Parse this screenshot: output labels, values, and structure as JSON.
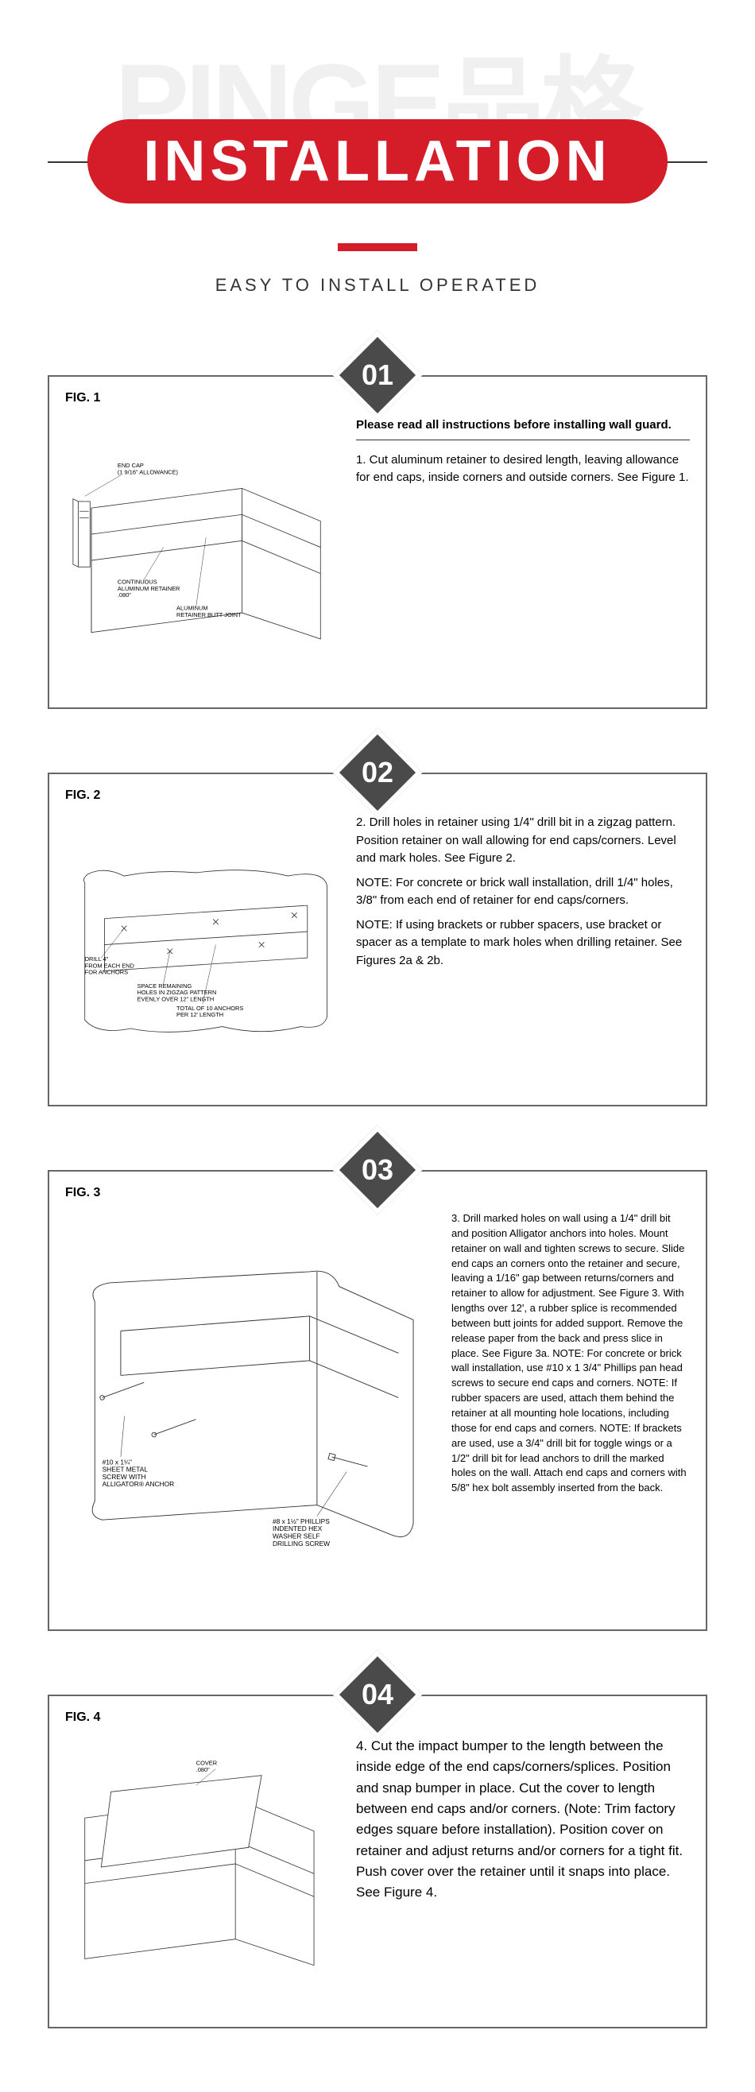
{
  "brand": {
    "watermark_en": "PINGE",
    "watermark_cn": "品格"
  },
  "title": "INSTALLATION",
  "subtitle": "EASY TO INSTALL  OPERATED",
  "colors": {
    "accent": "#d51c29",
    "badge": "#4a4a4a",
    "border": "#666666",
    "watermark": "#f0f0f0"
  },
  "steps": [
    {
      "num": "01",
      "fig": "FIG. 1",
      "header": "Please read all instructions before installing wall guard.",
      "body": "1. Cut aluminum retainer to desired length, leaving allowance for end caps, inside corners and outside corners. See Figure 1.",
      "callouts": {
        "end_cap": "END CAP\n(1 9/16\" ALLOWANCE)",
        "retainer": "CONTINUOUS\nALUMINUM RETAINER\n.080\"",
        "butt": "ALUMINUM\nRETAINER BUTT JOINT"
      }
    },
    {
      "num": "02",
      "fig": "FIG. 2",
      "body": "2. Drill holes in retainer using 1/4\" drill bit in a zigzag pattern. Position retainer on wall allowing for end caps/corners. Level and mark holes. See Figure 2.\n\nNOTE: For concrete or brick wall installation, drill 1/4\" holes, 3/8\" from each end of retainer for end caps/corners.\n\nNOTE: If using brackets or rubber spacers, use bracket or spacer as a template to mark holes when drilling retainer. See Figures 2a & 2b.",
      "callouts": {
        "drill": "DRILL 4\"\nFROM EACH END\nFOR ANCHORS",
        "space": "SPACE REMAINING\nHOLES IN ZIGZAG PATTERN\nEVENLY OVER 12\" LENGTH",
        "total": "TOTAL OF 10 ANCHORS\nPER 12' LENGTH"
      }
    },
    {
      "num": "03",
      "fig": "FIG.  3",
      "body": "3. Drill marked holes on wall using a 1/4\" drill bit and position Alligator anchors into holes. Mount retainer on wall and tighten screws to secure. Slide end caps an corners onto the retainer and secure, leaving a 1/16\" gap between returns/corners and retainer to allow for adjustment. See Figure 3.\nWith lengths over 12', a rubber splice is recommended between butt joints for added support. Remove the release paper from the back and press slice in place. See Figure 3a.\nNOTE: For concrete or brick wall installation, use #10 x 1 3/4\" Phillips pan head screws to secure end caps and corners.\nNOTE: If rubber spacers are used, attach them behind the retainer at all mounting hole locations, including those for end caps and corners.\nNOTE: If brackets are used, use a 3/4\" drill bit for toggle wings or a 1/2\" drill bit for lead anchors to drill the marked holes on the wall. Attach end caps and corners with 5/8\" hex bolt assembly inserted from the back.",
      "callouts": {
        "screw1": "#10 x 1¼\"\nSHEET METAL\nSCREW WITH\nALLIGATOR® ANCHOR",
        "screw2": "#8 x 1½\" PHILLIPS\nINDENTED HEX\nWASHER SELF\nDRILLING SCREW"
      }
    },
    {
      "num": "04",
      "fig": "FIG.  4",
      "body": "4. Cut the impact bumper to the length between the inside edge of the end caps/corners/splices. Position and snap bumper in place. Cut the cover to length between end caps and/or corners. (Note: Trim factory edges square before installation). Position cover on retainer and adjust returns and/or corners for a tight fit. Push cover over the retainer until it snaps into place. See Figure 4.",
      "callouts": {
        "cover": "COVER\n.080\""
      }
    }
  ]
}
